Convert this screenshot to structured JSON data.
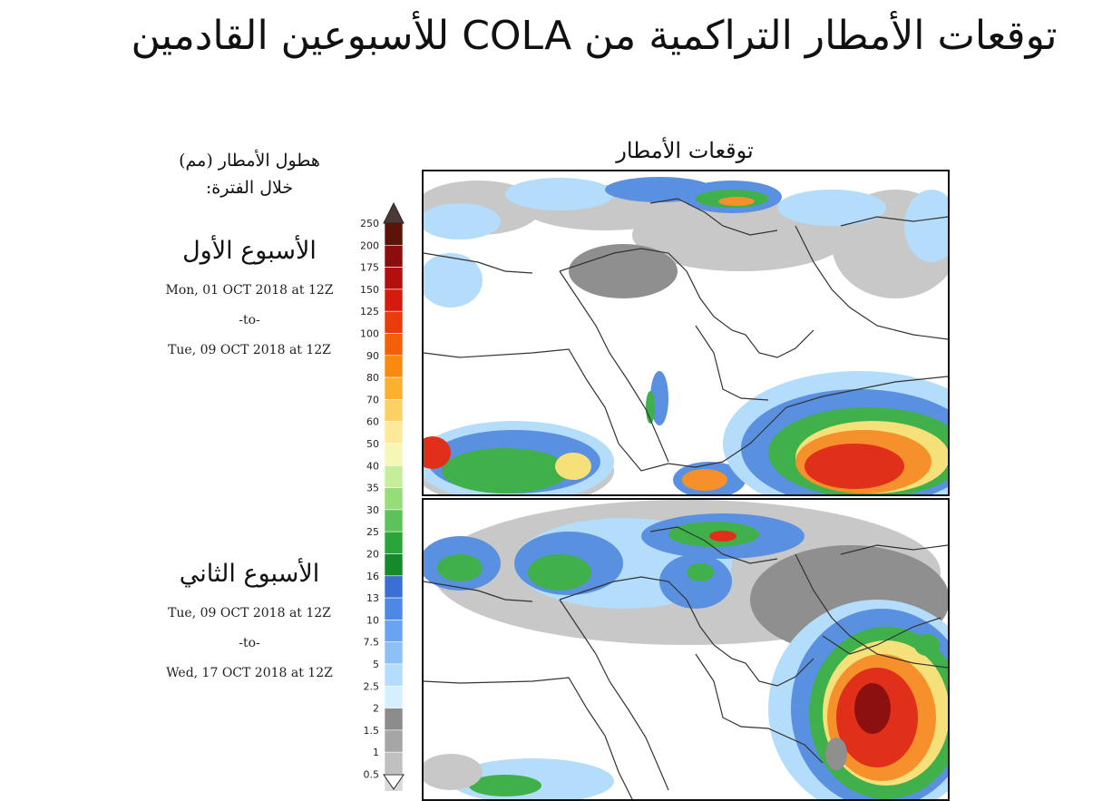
{
  "title": "توقعات الأمطار التراكمية من COLA للأسبوعين القادمين",
  "legend": {
    "label_line1": "هطول الأمطار (مم)",
    "label_line2": "خلال الفترة:"
  },
  "maps_title": "توقعات الأمطار",
  "weeks": [
    {
      "title": "الأسبوع الأول",
      "from": "Mon, 01 OCT 2018 at 12Z",
      "sep": "-to-",
      "to": "Tue, 09 OCT 2018 at 12Z"
    },
    {
      "title": "الأسبوع الثاني",
      "from": "Tue, 09 OCT 2018 at 12Z",
      "sep": "-to-",
      "to": "Wed, 17 OCT 2018 at 12Z"
    }
  ],
  "colorbar": {
    "unit": "mm",
    "levels": [
      "250",
      "200",
      "175",
      "150",
      "125",
      "100",
      "90",
      "80",
      "70",
      "60",
      "50",
      "40",
      "35",
      "30",
      "25",
      "20",
      "16",
      "13",
      "10",
      "7.5",
      "5",
      "2.5",
      "2",
      "1.5",
      "1",
      "0.5"
    ],
    "colors": [
      "#5c1408",
      "#8b0d0d",
      "#b40f0f",
      "#d51a10",
      "#ea3b0c",
      "#f4600a",
      "#f98a10",
      "#fbb030",
      "#fdd066",
      "#fce99a",
      "#f4f7b6",
      "#c6ee9a",
      "#96dc78",
      "#5cc35a",
      "#2aa53a",
      "#15892c",
      "#3b6fd4",
      "#4c88e6",
      "#6aa4f0",
      "#8cc0f6",
      "#b4dcfb",
      "#d6efff",
      "#8c8c8c",
      "#a6a6a6",
      "#c0c0c0",
      "#d9d9d9"
    ],
    "top_arrow_color": "#4d3a36",
    "bottom_arrow_color": "#ffffff"
  },
  "map_colors": {
    "land_lines": "#333333",
    "gray_light": "#c8c8c8",
    "gray_dark": "#8f8f8f",
    "blue_light": "#b4dcfb",
    "blue": "#5a90e0",
    "green": "#3fb04a",
    "yellow": "#f6e07a",
    "orange": "#f6902a",
    "red": "#e0301a",
    "dark_red": "#8c1010"
  }
}
